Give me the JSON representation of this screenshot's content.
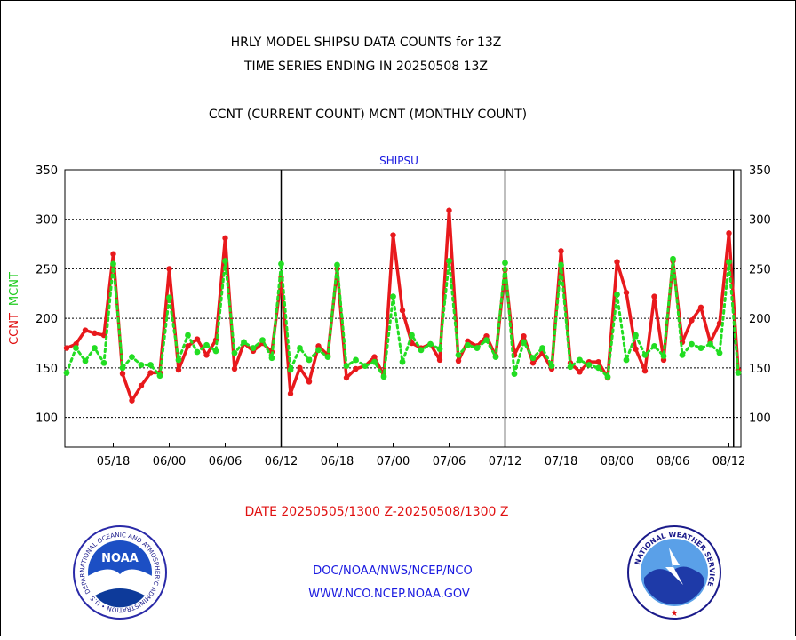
{
  "header": {
    "title_line1": "HRLY MODEL SHIPSU DATA COUNTS for 13Z",
    "title_line2": "TIME SERIES ENDING IN 20250508 13Z",
    "legend_line": "CCNT (CURRENT COUNT) MCNT (MONTHLY COUNT)"
  },
  "footer": {
    "date_range": "DATE 20250505/1300 Z-20250508/1300 Z",
    "credit_org": "DOC/NOAA/NWS/NCEP/NCO",
    "credit_url": "WWW.NCO.NCEP.NOAA.GOV"
  },
  "logos": {
    "noaa_text": "NOAA",
    "noaa_ring": "NATIONAL OCEANIC AND ATMOSPHERIC ADMINISTRATION • U.S. DEPARTMENT OF COMMERCE •",
    "nws_ring": "NATIONAL WEATHER SERVICE"
  },
  "colors": {
    "ccnt": "#e8191c",
    "mcnt": "#22dd22",
    "text_blue": "#1a1ae0",
    "frame": "#000000"
  },
  "chart_data": {
    "type": "line",
    "title": "SHIPSU",
    "ylabel_ccnt": "CCNT",
    "ylabel_mcnt": "MCNT",
    "ylim": [
      70,
      350
    ],
    "yticks": [
      100,
      150,
      200,
      250,
      300,
      350
    ],
    "x_ticks": [
      {
        "i": 5,
        "label": "05/18"
      },
      {
        "i": 11,
        "label": "06/00"
      },
      {
        "i": 17,
        "label": "06/06"
      },
      {
        "i": 23,
        "label": "06/12"
      },
      {
        "i": 29,
        "label": "06/18"
      },
      {
        "i": 35,
        "label": "07/00"
      },
      {
        "i": 41,
        "label": "07/06"
      },
      {
        "i": 47,
        "label": "07/12"
      },
      {
        "i": 53,
        "label": "07/18"
      },
      {
        "i": 59,
        "label": "08/00"
      },
      {
        "i": 65,
        "label": "08/06"
      },
      {
        "i": 71,
        "label": "08/12"
      }
    ],
    "day_breaks": [
      23,
      47,
      71.5
    ],
    "x_count": 73,
    "grid": true,
    "series": [
      {
        "name": "CCNT",
        "color": "#e8191c",
        "values": [
          170,
          174,
          188,
          185,
          183,
          265,
          144,
          117,
          132,
          145,
          145,
          250,
          148,
          172,
          179,
          163,
          178,
          281,
          149,
          175,
          167,
          175,
          166,
          241,
          124,
          150,
          136,
          172,
          163,
          250,
          140,
          149,
          152,
          161,
          142,
          284,
          208,
          175,
          170,
          174,
          158,
          309,
          157,
          177,
          172,
          182,
          162,
          249,
          163,
          182,
          155,
          165,
          149,
          268,
          155,
          146,
          156,
          156,
          140,
          257,
          226,
          169,
          147,
          222,
          158,
          258,
          176,
          198,
          211,
          176,
          195,
          286,
          148
        ]
      },
      {
        "name": "MCNT",
        "color": "#22dd22",
        "values": [
          145,
          170,
          157,
          170,
          155,
          255,
          150,
          161,
          153,
          153,
          142,
          221,
          158,
          183,
          166,
          173,
          167,
          258,
          165,
          176,
          170,
          178,
          160,
          255,
          148,
          170,
          158,
          168,
          161,
          254,
          152,
          158,
          152,
          156,
          141,
          222,
          156,
          183,
          168,
          174,
          169,
          258,
          163,
          173,
          170,
          178,
          161,
          256,
          144,
          176,
          160,
          170,
          152,
          254,
          151,
          158,
          153,
          150,
          141,
          224,
          158,
          183,
          163,
          172,
          162,
          260,
          163,
          174,
          170,
          174,
          165,
          257,
          145
        ]
      }
    ]
  }
}
